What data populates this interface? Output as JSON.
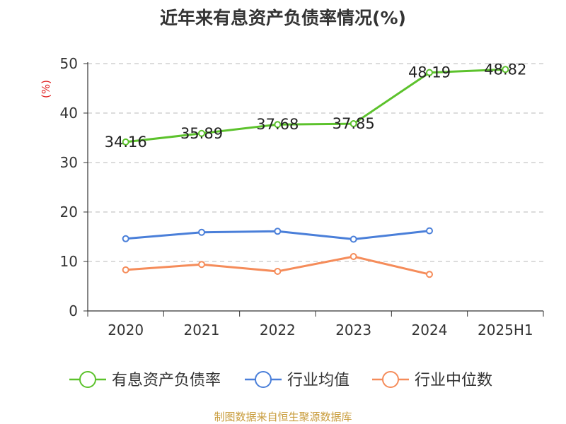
{
  "title": "近年来有息资产负债率情况(%)",
  "source": "制图数据来自恒生聚源数据库",
  "chart_data": {
    "type": "line",
    "title": "近年来有息资产负债率情况(%)",
    "ylabel": "(%)",
    "xlabel": "",
    "categories": [
      "2020",
      "2021",
      "2022",
      "2023",
      "2024",
      "2025H1"
    ],
    "ylim": [
      0,
      50
    ],
    "yticks": [
      0,
      10,
      20,
      30,
      40,
      50
    ],
    "grid": true,
    "legend_position": "bottom",
    "series": [
      {
        "name": "有息资产负债率",
        "color": "#5cc22c",
        "values": [
          34.16,
          35.89,
          37.68,
          37.85,
          48.19,
          48.82
        ],
        "labels": [
          "34.16",
          "35.89",
          "37.68",
          "37.85",
          "48.19",
          "48.82"
        ],
        "show_labels": true
      },
      {
        "name": "行业均值",
        "color": "#4a7fd9",
        "values": [
          14.6,
          15.9,
          16.1,
          14.5,
          16.2,
          null
        ],
        "show_labels": false
      },
      {
        "name": "行业中位数",
        "color": "#f58c5a",
        "values": [
          8.3,
          9.4,
          8.0,
          11.0,
          7.4,
          null
        ],
        "show_labels": false
      }
    ]
  }
}
